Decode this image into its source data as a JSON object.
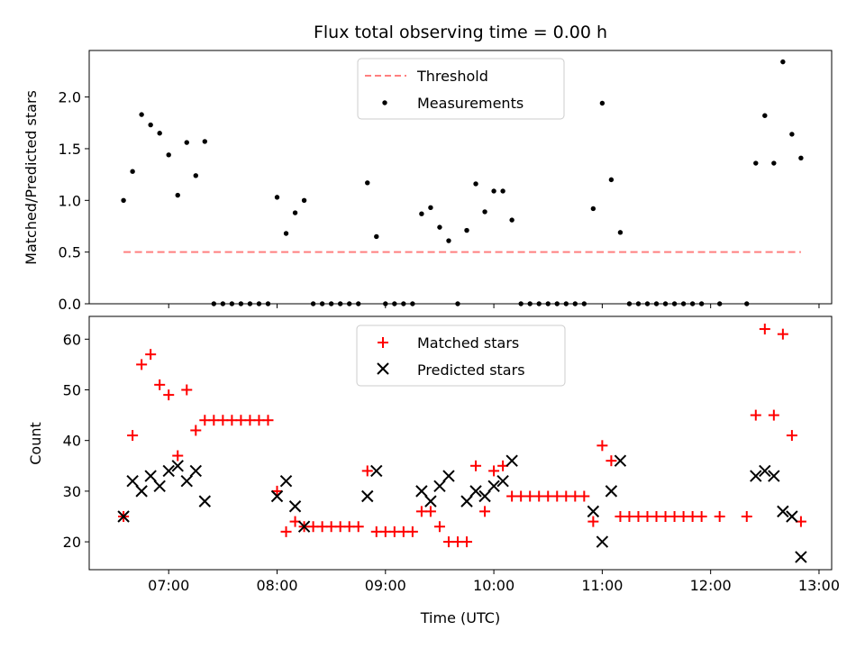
{
  "chart_data": [
    {
      "type": "scatter",
      "title": "Flux total observing time = 0.00 h",
      "xlabel": "",
      "ylabel": "Matched/Predicted stars",
      "xlim": [
        "06:16",
        "13:07"
      ],
      "ylim": [
        0,
        2.45
      ],
      "x_ticks": [
        "07:00",
        "08:00",
        "09:00",
        "10:00",
        "11:00",
        "12:00",
        "13:00"
      ],
      "y_ticks": [
        "0.0",
        "0.5",
        "1.0",
        "1.5",
        "2.0"
      ],
      "legend": {
        "position": "top-center",
        "entries": [
          "Threshold",
          "Measurements"
        ]
      },
      "series": [
        {
          "name": "Threshold",
          "style": "dashed-line",
          "color": "#ff7f7f",
          "x": [
            "06:35",
            "12:50"
          ],
          "y": [
            0.5,
            0.5
          ]
        },
        {
          "name": "Measurements",
          "style": "dot",
          "color": "#000000",
          "points": [
            [
              "06:35",
              1.0
            ],
            [
              "06:40",
              1.28
            ],
            [
              "06:45",
              1.83
            ],
            [
              "06:50",
              1.73
            ],
            [
              "06:55",
              1.65
            ],
            [
              "07:00",
              1.44
            ],
            [
              "07:05",
              1.05
            ],
            [
              "07:10",
              1.56
            ],
            [
              "07:15",
              1.24
            ],
            [
              "07:20",
              1.57
            ],
            [
              "07:25",
              0
            ],
            [
              "07:30",
              0
            ],
            [
              "07:35",
              0
            ],
            [
              "07:40",
              0
            ],
            [
              "07:45",
              0
            ],
            [
              "07:50",
              0
            ],
            [
              "07:55",
              0
            ],
            [
              "08:00",
              1.03
            ],
            [
              "08:05",
              0.68
            ],
            [
              "08:10",
              0.88
            ],
            [
              "08:15",
              1.0
            ],
            [
              "08:20",
              0
            ],
            [
              "08:25",
              0
            ],
            [
              "08:30",
              0
            ],
            [
              "08:35",
              0
            ],
            [
              "08:40",
              0
            ],
            [
              "08:45",
              0
            ],
            [
              "08:50",
              1.17
            ],
            [
              "08:55",
              0.65
            ],
            [
              "09:00",
              0
            ],
            [
              "09:05",
              0
            ],
            [
              "09:10",
              0
            ],
            [
              "09:15",
              0
            ],
            [
              "09:20",
              0.87
            ],
            [
              "09:25",
              0.93
            ],
            [
              "09:30",
              0.74
            ],
            [
              "09:35",
              0.61
            ],
            [
              "09:40",
              0
            ],
            [
              "09:45",
              0.71
            ],
            [
              "09:50",
              1.16
            ],
            [
              "09:55",
              0.89
            ],
            [
              "10:00",
              1.09
            ],
            [
              "10:05",
              1.09
            ],
            [
              "10:10",
              0.81
            ],
            [
              "10:15",
              0
            ],
            [
              "10:20",
              0
            ],
            [
              "10:25",
              0
            ],
            [
              "10:30",
              0
            ],
            [
              "10:35",
              0
            ],
            [
              "10:40",
              0
            ],
            [
              "10:45",
              0
            ],
            [
              "10:50",
              0
            ],
            [
              "10:55",
              0.92
            ],
            [
              "11:00",
              1.94
            ],
            [
              "11:05",
              1.2
            ],
            [
              "11:10",
              0.69
            ],
            [
              "11:15",
              0
            ],
            [
              "11:20",
              0
            ],
            [
              "11:25",
              0
            ],
            [
              "11:30",
              0
            ],
            [
              "11:35",
              0
            ],
            [
              "11:40",
              0
            ],
            [
              "11:45",
              0
            ],
            [
              "11:50",
              0
            ],
            [
              "11:55",
              0
            ],
            [
              "12:05",
              0
            ],
            [
              "12:20",
              0
            ],
            [
              "12:25",
              1.36
            ],
            [
              "12:30",
              1.82
            ],
            [
              "12:35",
              1.36
            ],
            [
              "12:40",
              2.34
            ],
            [
              "12:45",
              1.64
            ],
            [
              "12:50",
              1.41
            ]
          ]
        }
      ]
    },
    {
      "type": "scatter",
      "title": "",
      "xlabel": "Time (UTC)",
      "ylabel": "Count",
      "xlim": [
        "06:16",
        "13:07"
      ],
      "ylim": [
        14.5,
        64.5
      ],
      "x_ticks": [
        "07:00",
        "08:00",
        "09:00",
        "10:00",
        "11:00",
        "12:00",
        "13:00"
      ],
      "y_ticks": [
        "20",
        "30",
        "40",
        "50",
        "60"
      ],
      "legend": {
        "position": "top-center",
        "entries": [
          "Matched stars",
          "Predicted stars"
        ]
      },
      "series": [
        {
          "name": "Matched stars",
          "marker": "plus",
          "color": "#ff0000",
          "points": [
            [
              "06:35",
              25
            ],
            [
              "06:40",
              41
            ],
            [
              "06:45",
              55
            ],
            [
              "06:50",
              57
            ],
            [
              "06:55",
              51
            ],
            [
              "07:00",
              49
            ],
            [
              "07:05",
              37
            ],
            [
              "07:10",
              50
            ],
            [
              "07:15",
              42
            ],
            [
              "07:20",
              44
            ],
            [
              "07:25",
              44
            ],
            [
              "07:30",
              44
            ],
            [
              "07:35",
              44
            ],
            [
              "07:40",
              44
            ],
            [
              "07:45",
              44
            ],
            [
              "07:50",
              44
            ],
            [
              "07:55",
              44
            ],
            [
              "08:00",
              30
            ],
            [
              "08:05",
              22
            ],
            [
              "08:10",
              24
            ],
            [
              "08:15",
              23
            ],
            [
              "08:20",
              23
            ],
            [
              "08:25",
              23
            ],
            [
              "08:30",
              23
            ],
            [
              "08:35",
              23
            ],
            [
              "08:40",
              23
            ],
            [
              "08:45",
              23
            ],
            [
              "08:50",
              34
            ],
            [
              "08:55",
              22
            ],
            [
              "09:00",
              22
            ],
            [
              "09:05",
              22
            ],
            [
              "09:10",
              22
            ],
            [
              "09:15",
              22
            ],
            [
              "09:20",
              26
            ],
            [
              "09:25",
              26
            ],
            [
              "09:30",
              23
            ],
            [
              "09:35",
              20
            ],
            [
              "09:40",
              20
            ],
            [
              "09:45",
              20
            ],
            [
              "09:50",
              35
            ],
            [
              "09:55",
              26
            ],
            [
              "10:00",
              34
            ],
            [
              "10:05",
              35
            ],
            [
              "10:10",
              29
            ],
            [
              "10:15",
              29
            ],
            [
              "10:20",
              29
            ],
            [
              "10:25",
              29
            ],
            [
              "10:30",
              29
            ],
            [
              "10:35",
              29
            ],
            [
              "10:40",
              29
            ],
            [
              "10:45",
              29
            ],
            [
              "10:50",
              29
            ],
            [
              "10:55",
              24
            ],
            [
              "11:00",
              39
            ],
            [
              "11:05",
              36
            ],
            [
              "11:10",
              25
            ],
            [
              "11:15",
              25
            ],
            [
              "11:20",
              25
            ],
            [
              "11:25",
              25
            ],
            [
              "11:30",
              25
            ],
            [
              "11:35",
              25
            ],
            [
              "11:40",
              25
            ],
            [
              "11:45",
              25
            ],
            [
              "11:50",
              25
            ],
            [
              "11:55",
              25
            ],
            [
              "12:05",
              25
            ],
            [
              "12:20",
              25
            ],
            [
              "12:25",
              45
            ],
            [
              "12:30",
              62
            ],
            [
              "12:35",
              45
            ],
            [
              "12:40",
              61
            ],
            [
              "12:45",
              41
            ],
            [
              "12:50",
              24
            ]
          ]
        },
        {
          "name": "Predicted stars",
          "marker": "x",
          "color": "#000000",
          "points": [
            [
              "06:35",
              25
            ],
            [
              "06:40",
              32
            ],
            [
              "06:45",
              30
            ],
            [
              "06:50",
              33
            ],
            [
              "06:55",
              31
            ],
            [
              "07:00",
              34
            ],
            [
              "07:05",
              35
            ],
            [
              "07:10",
              32
            ],
            [
              "07:15",
              34
            ],
            [
              "07:20",
              28
            ],
            [
              "08:00",
              29
            ],
            [
              "08:05",
              32
            ],
            [
              "08:10",
              27
            ],
            [
              "08:15",
              23
            ],
            [
              "08:50",
              29
            ],
            [
              "08:55",
              34
            ],
            [
              "09:20",
              30
            ],
            [
              "09:25",
              28
            ],
            [
              "09:30",
              31
            ],
            [
              "09:35",
              33
            ],
            [
              "09:45",
              28
            ],
            [
              "09:50",
              30
            ],
            [
              "09:55",
              29
            ],
            [
              "10:00",
              31
            ],
            [
              "10:05",
              32
            ],
            [
              "10:10",
              36
            ],
            [
              "10:55",
              26
            ],
            [
              "11:00",
              20
            ],
            [
              "11:05",
              30
            ],
            [
              "11:10",
              36
            ],
            [
              "12:25",
              33
            ],
            [
              "12:30",
              34
            ],
            [
              "12:35",
              33
            ],
            [
              "12:40",
              26
            ],
            [
              "12:45",
              25
            ],
            [
              "12:50",
              17
            ]
          ]
        }
      ]
    }
  ]
}
